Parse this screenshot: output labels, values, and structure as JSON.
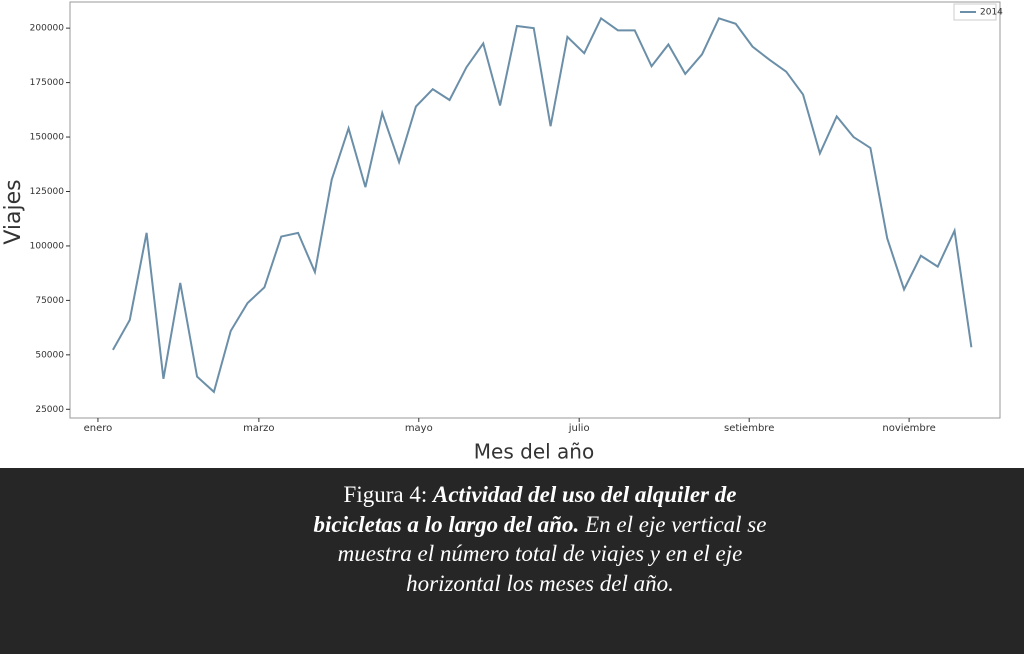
{
  "chart_data": {
    "type": "line",
    "xlabel": "Mes del año",
    "ylabel": "Viajes",
    "x": [
      0,
      1,
      2,
      3,
      4,
      5,
      6,
      7,
      8,
      9,
      10,
      11,
      12,
      13,
      14,
      15,
      16,
      17,
      18,
      19,
      20,
      21,
      22,
      23,
      24,
      25,
      26,
      27,
      28,
      29,
      30,
      31,
      32,
      33,
      34,
      35,
      36,
      37,
      38,
      39,
      40,
      41,
      42,
      43,
      44,
      45,
      46,
      47,
      48,
      49,
      50,
      51
    ],
    "series": [
      {
        "name": "2014",
        "color": "#6b8fa8",
        "values": [
          52300,
          66000,
          106000,
          39000,
          83000,
          40000,
          33000,
          61000,
          73800,
          81000,
          104300,
          106000,
          88000,
          130500,
          154000,
          127000,
          161000,
          138500,
          164000,
          172000,
          167000,
          182000,
          193000,
          164500,
          201000,
          200000,
          155000,
          196000,
          188500,
          204500,
          199000,
          199000,
          182500,
          192500,
          179000,
          188000,
          204500,
          202000,
          191500,
          185500,
          180000,
          169500,
          142500,
          159500,
          150000,
          145000,
          103500,
          80000,
          95500,
          90500,
          107000,
          53500
        ]
      }
    ],
    "xlim": [
      -2.55,
      52.7
    ],
    "xticks": [
      {
        "value": -0.89,
        "label": "enero"
      },
      {
        "value": 8.67,
        "label": "marzo"
      },
      {
        "value": 18.17,
        "label": "mayo"
      },
      {
        "value": 27.7,
        "label": "julio"
      },
      {
        "value": 37.8,
        "label": "setiembre"
      },
      {
        "value": 47.3,
        "label": "noviembre"
      }
    ],
    "ylim": [
      21000,
      212000
    ],
    "yticks": [
      25000,
      50000,
      75000,
      100000,
      125000,
      150000,
      175000,
      200000
    ],
    "legend": "upper right"
  },
  "caption": {
    "label": "Figura 4:",
    "title": "Actividad del uso del alquiler de bicicletas a lo largo del año.",
    "text": "En el eje vertical se muestra el número total de viajes y en el eje horizontal los meses del año."
  }
}
